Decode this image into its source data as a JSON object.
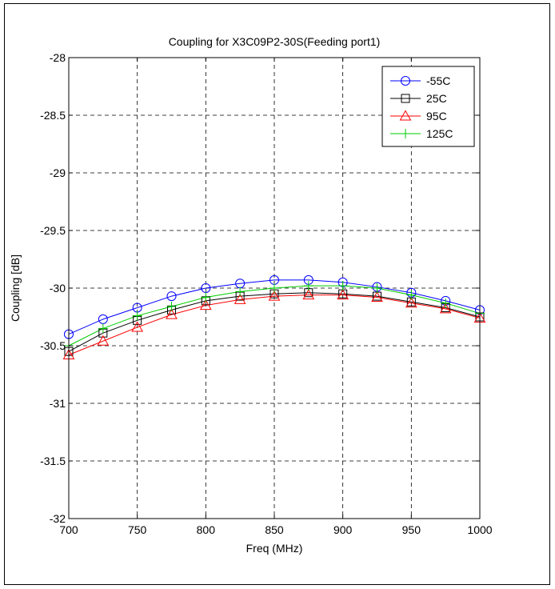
{
  "chart_data": {
    "type": "line",
    "title": "Coupling for X3C09P2-30S(Feeding port1)",
    "xlabel": "Freq (MHz)",
    "ylabel": "Coupling [dB]",
    "xlim": [
      700,
      1000
    ],
    "ylim": [
      -32,
      -28
    ],
    "xticks": [
      700,
      750,
      800,
      850,
      900,
      950,
      1000
    ],
    "yticks": [
      -32,
      -31.5,
      -31,
      -30.5,
      -30,
      -29.5,
      -29,
      -28.5,
      -28
    ],
    "xtick_labels": [
      "700",
      "750",
      "800",
      "850",
      "900",
      "950",
      "1000"
    ],
    "ytick_labels": [
      "-32",
      "-31.5",
      "-31",
      "-30.5",
      "-30",
      "-29.5",
      "-29",
      "-28.5",
      "-28"
    ],
    "grid": true,
    "legend_position": "top-right",
    "x": [
      700,
      725,
      750,
      775,
      800,
      825,
      850,
      875,
      900,
      925,
      950,
      975,
      1000
    ],
    "series": [
      {
        "name": "-55C",
        "color": "#0000ff",
        "marker": "circle",
        "values": [
          -30.4,
          -30.27,
          -30.17,
          -30.07,
          -30.0,
          -29.96,
          -29.93,
          -29.93,
          -29.95,
          -29.99,
          -30.04,
          -30.11,
          -30.19
        ]
      },
      {
        "name": "25C",
        "color": "#000000",
        "marker": "square",
        "values": [
          -30.55,
          -30.39,
          -30.28,
          -30.19,
          -30.11,
          -30.07,
          -30.05,
          -30.04,
          -30.05,
          -30.07,
          -30.12,
          -30.17,
          -30.25
        ]
      },
      {
        "name": "95C",
        "color": "#ff0000",
        "marker": "triangle",
        "values": [
          -30.58,
          -30.46,
          -30.34,
          -30.23,
          -30.15,
          -30.1,
          -30.07,
          -30.06,
          -30.06,
          -30.08,
          -30.13,
          -30.18,
          -30.26
        ]
      },
      {
        "name": "125C",
        "color": "#00cc00",
        "marker": "plus",
        "values": [
          -30.5,
          -30.35,
          -30.24,
          -30.16,
          -30.08,
          -30.03,
          -30.0,
          -29.98,
          -29.98,
          -30.0,
          -30.06,
          -30.13,
          -30.22
        ]
      }
    ]
  }
}
